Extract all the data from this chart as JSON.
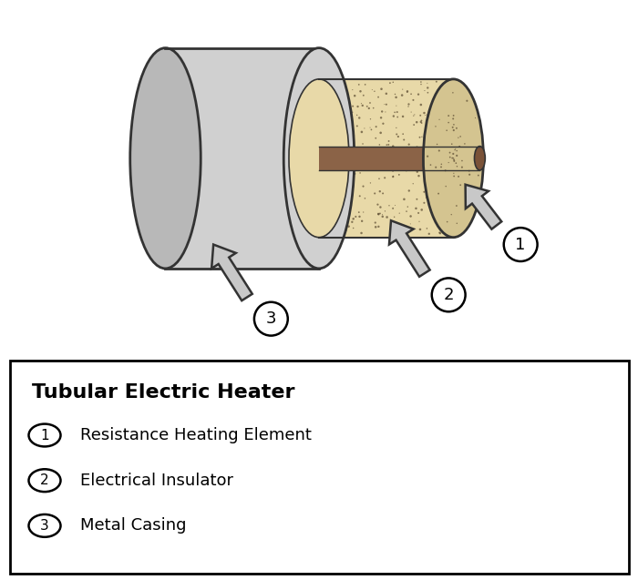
{
  "title": "Tubular Electric Heater",
  "labels": [
    "Resistance Heating Element",
    "Electrical Insulator",
    "Metal Casing"
  ],
  "label_nums": [
    "1",
    "2",
    "3"
  ],
  "color_outer_casing": "#d0d0d0",
  "color_outer_casing_face": "#b8b8b8",
  "color_outer_casing_edge": "#333333",
  "color_insulator": "#e8d9a8",
  "color_insulator_face": "#d4c490",
  "color_insulator_edge": "#333333",
  "color_element": "#8B6347",
  "color_element_face": "#7a5238",
  "color_element_edge": "#333333",
  "color_arrow_fill": "#c8c8c8",
  "color_arrow_edge": "#333333",
  "background": "#ffffff",
  "dot_color": "#5a4a30",
  "figsize": [
    7.0,
    6.37
  ],
  "dpi": 100
}
